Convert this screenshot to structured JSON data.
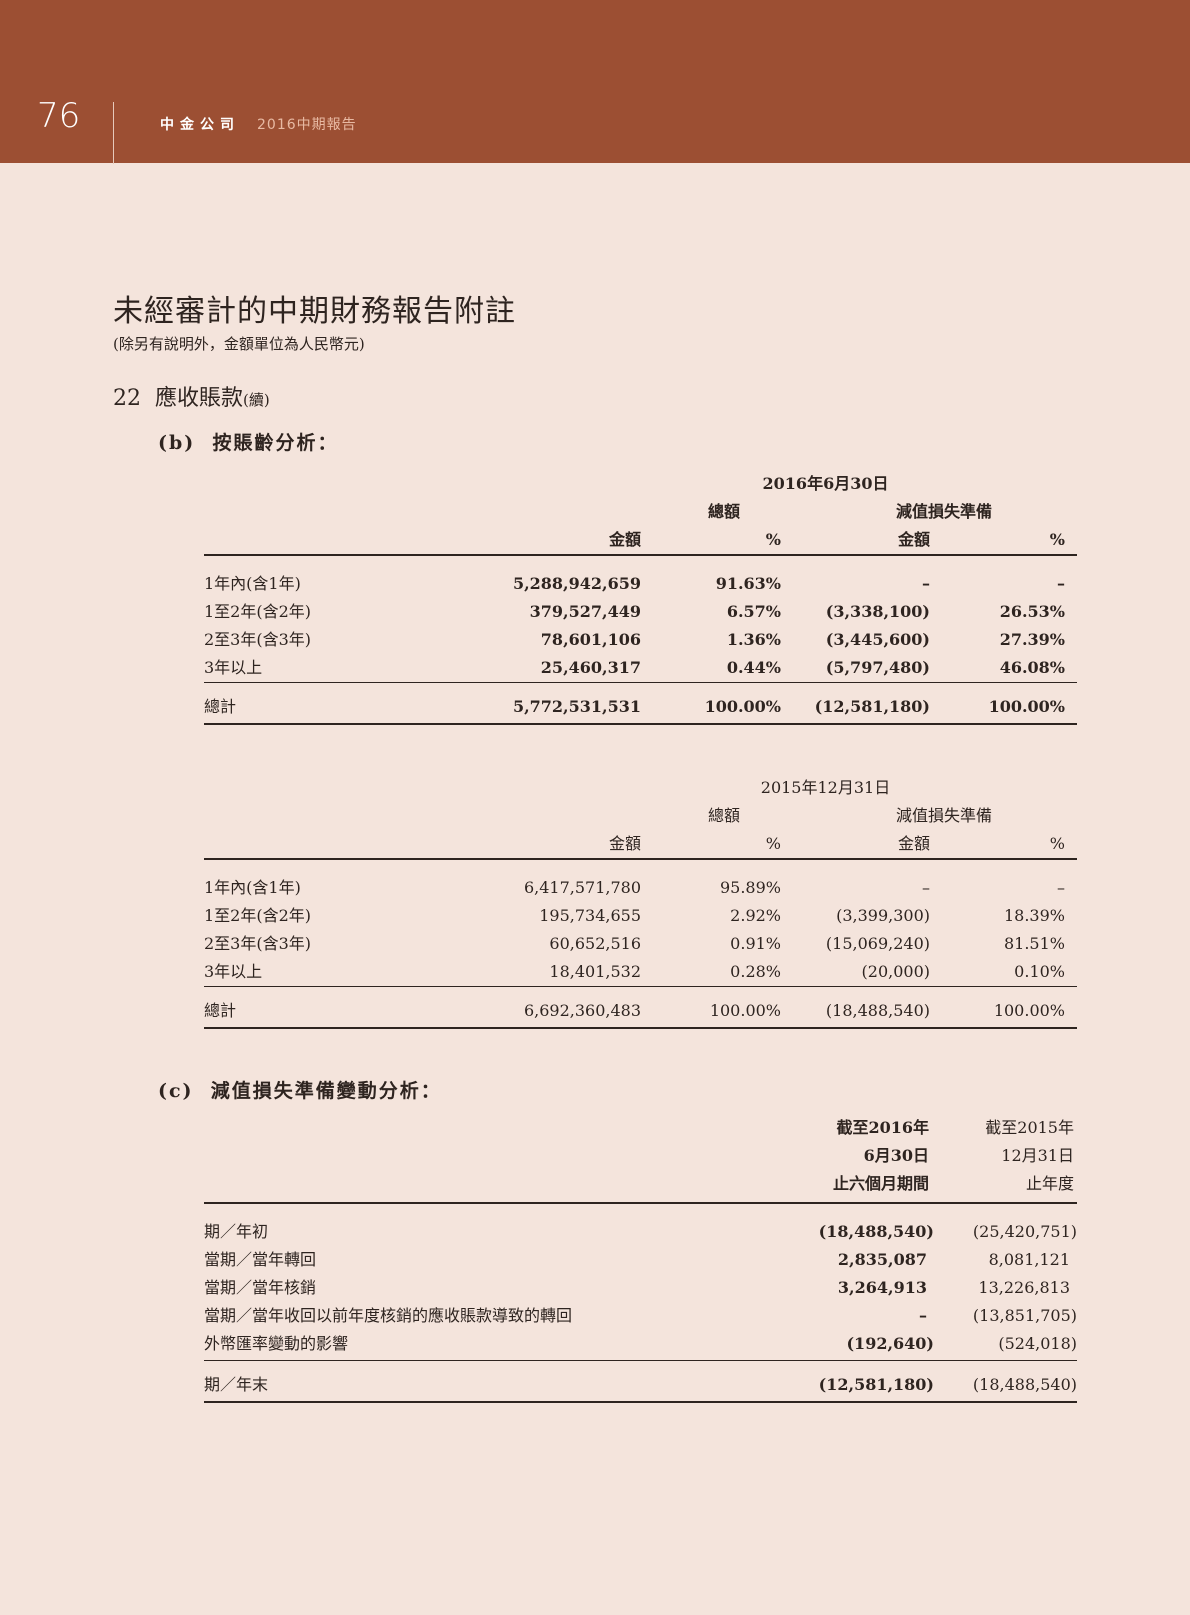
{
  "header": {
    "page_number": "76",
    "brand": "中金公司",
    "report": "2016中期報告",
    "band_color": "#9c4f33"
  },
  "title": "未經審計的中期財務報告附註",
  "subtitle": "(除另有說明外，金額單位為人民幣元)",
  "section": {
    "number": "22",
    "title": "應收賬款",
    "suffix": "(續)"
  },
  "part_b": {
    "label": "(b)",
    "title": "按賬齡分析：",
    "tables": [
      {
        "date": "2016年6月30日",
        "group1": "總額",
        "group2": "減值損失準備",
        "col_amount": "金額",
        "col_pct": "%",
        "rows": [
          {
            "label": "1年內(含1年)",
            "gross": "5,288,942,659",
            "gross_pct": "91.63%",
            "imp": "–",
            "imp_pct": "–"
          },
          {
            "label": "1至2年(含2年)",
            "gross": "379,527,449",
            "gross_pct": "6.57%",
            "imp": "(3,338,100)",
            "imp_pct": "26.53%"
          },
          {
            "label": "2至3年(含3年)",
            "gross": "78,601,106",
            "gross_pct": "1.36%",
            "imp": "(3,445,600)",
            "imp_pct": "27.39%"
          },
          {
            "label": "3年以上",
            "gross": "25,460,317",
            "gross_pct": "0.44%",
            "imp": "(5,797,480)",
            "imp_pct": "46.08%"
          }
        ],
        "total": {
          "label": "總計",
          "gross": "5,772,531,531",
          "gross_pct": "100.00%",
          "imp": "(12,581,180)",
          "imp_pct": "100.00%"
        }
      },
      {
        "date": "2015年12月31日",
        "group1": "總額",
        "group2": "減值損失準備",
        "col_amount": "金額",
        "col_pct": "%",
        "rows": [
          {
            "label": "1年內(含1年)",
            "gross": "6,417,571,780",
            "gross_pct": "95.89%",
            "imp": "–",
            "imp_pct": "–"
          },
          {
            "label": "1至2年(含2年)",
            "gross": "195,734,655",
            "gross_pct": "2.92%",
            "imp": "(3,399,300)",
            "imp_pct": "18.39%"
          },
          {
            "label": "2至3年(含3年)",
            "gross": "60,652,516",
            "gross_pct": "0.91%",
            "imp": "(15,069,240)",
            "imp_pct": "81.51%"
          },
          {
            "label": "3年以上",
            "gross": "18,401,532",
            "gross_pct": "0.28%",
            "imp": "(20,000)",
            "imp_pct": "0.10%"
          }
        ],
        "total": {
          "label": "總計",
          "gross": "6,692,360,483",
          "gross_pct": "100.00%",
          "imp": "(18,488,540)",
          "imp_pct": "100.00%"
        }
      }
    ]
  },
  "part_c": {
    "label": "(c)",
    "title": "減值損失準備變動分析：",
    "col1": [
      "截至2016年",
      "6月30日",
      "止六個月期間"
    ],
    "col2": [
      "截至2015年",
      "12月31日",
      "止年度"
    ],
    "rows": [
      {
        "label": "期／年初",
        "v1": "(18,488,540)",
        "v2": "(25,420,751)"
      },
      {
        "label": "當期／當年轉回",
        "v1": "2,835,087",
        "v2": "8,081,121"
      },
      {
        "label": "當期／當年核銷",
        "v1": "3,264,913",
        "v2": "13,226,813"
      },
      {
        "label": "當期／當年收回以前年度核銷的應收賬款導致的轉回",
        "v1": "–",
        "v2": "(13,851,705)"
      },
      {
        "label": "外幣匯率變動的影響",
        "v1": "(192,640)",
        "v2": "(524,018)"
      }
    ],
    "total": {
      "label": "期／年末",
      "v1": "(12,581,180)",
      "v2": "(18,488,540)"
    }
  }
}
